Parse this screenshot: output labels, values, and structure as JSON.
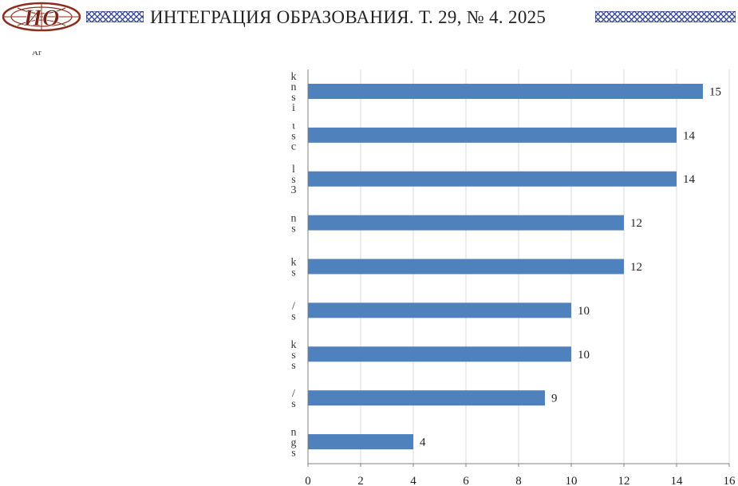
{
  "header": {
    "logo_letters": "ИО",
    "journal_title": "ИНТЕГРАЦИЯ ОБРАЗОВАНИЯ. Т. 29, № 4. 2025",
    "accent_color": "#8B2E1E",
    "pattern_color": "#2B3F8F"
  },
  "caption_fragment": "Ar",
  "chart_data": {
    "type": "bar",
    "orientation": "horizontal",
    "categories": [
      "",
      "",
      "",
      "",
      "",
      "",
      "",
      "",
      ""
    ],
    "values": [
      15,
      14,
      14,
      12,
      12,
      10,
      10,
      9,
      4
    ],
    "data_labels": [
      "15",
      "14",
      "14",
      "12",
      "12",
      "10",
      "10",
      "9",
      "4"
    ],
    "xlim": [
      0,
      16
    ],
    "x_ticks": [
      "0",
      "2",
      "4",
      "6",
      "8",
      "10",
      "12",
      "14",
      "16"
    ],
    "title": "",
    "xlabel": "",
    "ylabel": "",
    "grid": "vertical",
    "legend": "none",
    "bar_color": "#4F81BD",
    "label_fragments": [
      [
        "k",
        "n",
        "s",
        "i"
      ],
      [
        "ι",
        "s",
        "c"
      ],
      [
        "l",
        "s",
        "3"
      ],
      [
        "n",
        "s"
      ],
      [
        "k",
        "s"
      ],
      [
        "/",
        "s"
      ],
      [
        "k",
        "s",
        "s"
      ],
      [
        "/",
        "s"
      ],
      [
        "n",
        "g",
        "s"
      ]
    ]
  }
}
